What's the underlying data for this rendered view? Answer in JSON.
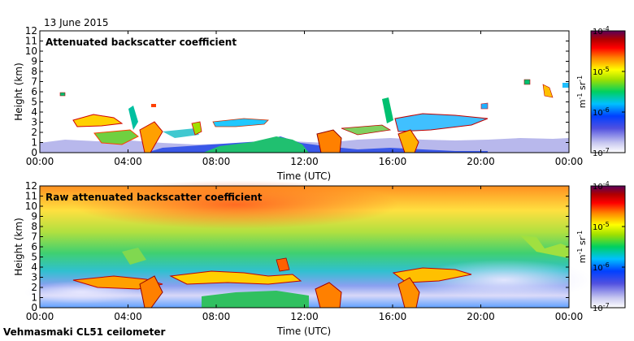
{
  "date_label": "13 June 2015",
  "instrument_label": "Vehmasmaki CL51 ceilometer",
  "colors": {
    "colormap": [
      "#ffffff",
      "#c8c8f0",
      "#5050e0",
      "#0040ff",
      "#00c0ff",
      "#00d060",
      "#a0e000",
      "#ffff00",
      "#ff8000",
      "#ff0000",
      "#b00000",
      "#5a005a"
    ]
  },
  "chart_data": [
    {
      "type": "heatmap",
      "title": "Attenuated backscatter coefficient",
      "xlabel": "Time (UTC)",
      "ylabel": "Height (km)",
      "xticks": [
        "00:00",
        "04:00",
        "08:00",
        "12:00",
        "16:00",
        "20:00",
        "00:00"
      ],
      "xlim_hours": [
        0,
        24
      ],
      "ylim_km": [
        0,
        12
      ],
      "yticks": [
        "0",
        "1",
        "2",
        "3",
        "4",
        "5",
        "6",
        "7",
        "8",
        "9",
        "10",
        "11",
        "12"
      ],
      "colorbar": {
        "label_html": "m<sup>-1</sup> sr<sup>-1</sup>",
        "label_parts": [
          "m",
          "-1",
          "sr",
          "-1"
        ],
        "ticks": [
          {
            "base": "10",
            "exp": "-4"
          },
          {
            "base": "10",
            "exp": "-5"
          },
          {
            "base": "10",
            "exp": "-6"
          },
          {
            "base": "10",
            "exp": "-7"
          }
        ],
        "range_log10": [
          -7,
          -4
        ]
      }
    },
    {
      "type": "heatmap",
      "title": "Raw attenuated backscatter coefficient",
      "xlabel": "Time (UTC)",
      "ylabel": "Height (km)",
      "xticks": [
        "00:00",
        "04:00",
        "08:00",
        "12:00",
        "16:00",
        "20:00",
        "00:00"
      ],
      "xlim_hours": [
        0,
        24
      ],
      "ylim_km": [
        0,
        12
      ],
      "yticks": [
        "0",
        "1",
        "2",
        "3",
        "4",
        "5",
        "6",
        "7",
        "8",
        "9",
        "10",
        "11",
        "12"
      ],
      "colorbar": {
        "label_parts": [
          "m",
          "-1",
          "sr",
          "-1"
        ],
        "ticks": [
          {
            "base": "10",
            "exp": "-4"
          },
          {
            "base": "10",
            "exp": "-5"
          },
          {
            "base": "10",
            "exp": "-6"
          },
          {
            "base": "10",
            "exp": "-7"
          }
        ],
        "range_log10": [
          -7,
          -4
        ]
      }
    }
  ]
}
